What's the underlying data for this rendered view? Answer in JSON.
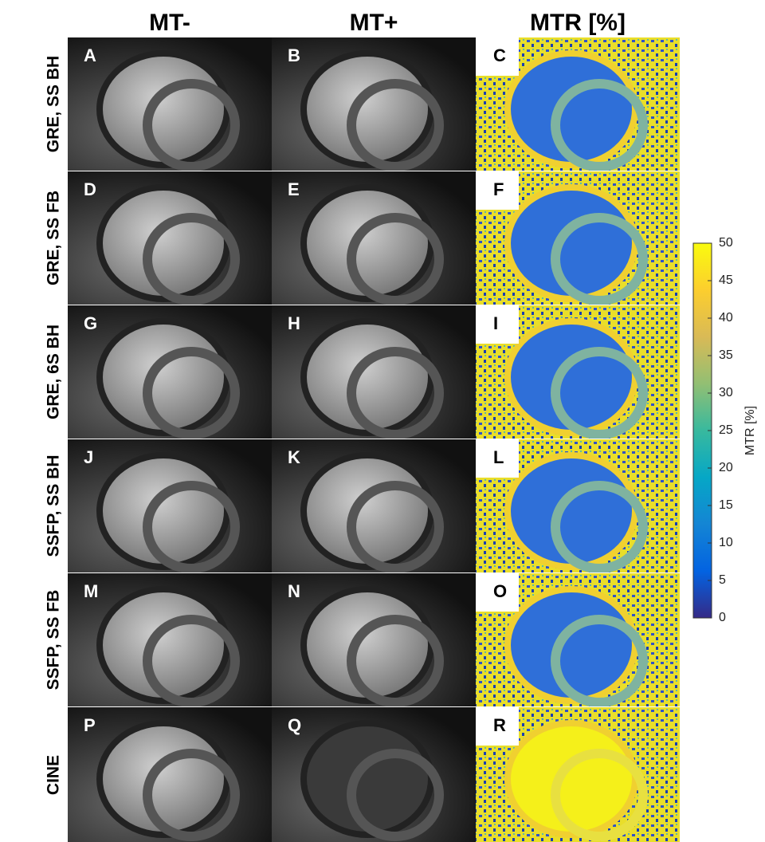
{
  "columns": [
    "MT-",
    "MT+",
    "MTR [%]"
  ],
  "rows": [
    {
      "label": "GRE, SS BH",
      "panels": [
        "A",
        "B",
        "C"
      ]
    },
    {
      "label": "GRE, SS FB",
      "panels": [
        "D",
        "E",
        "F"
      ]
    },
    {
      "label": "GRE, 6S BH",
      "panels": [
        "G",
        "H",
        "I"
      ]
    },
    {
      "label": "SSFP, SS BH",
      "panels": [
        "J",
        "K",
        "L"
      ]
    },
    {
      "label": "SSFP, SS FB",
      "panels": [
        "M",
        "N",
        "O"
      ]
    },
    {
      "label": "CINE",
      "panels": [
        "P",
        "Q",
        "R"
      ]
    }
  ],
  "colorbar": {
    "label": "MTR [%]",
    "lim": [
      0,
      50
    ],
    "ticks": [
      0,
      5,
      10,
      15,
      20,
      25,
      30,
      35,
      40,
      45,
      50
    ]
  }
}
